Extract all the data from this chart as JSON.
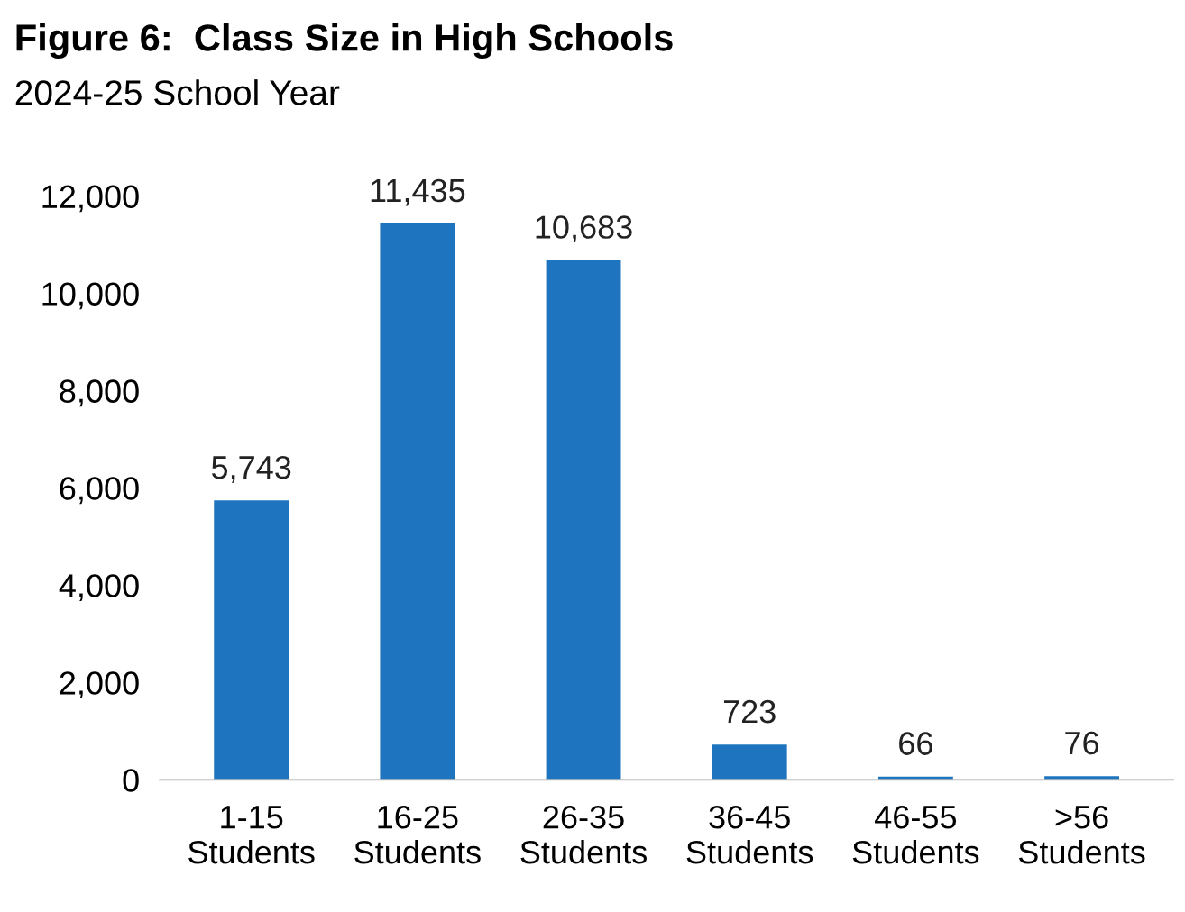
{
  "chart_data": {
    "type": "bar",
    "title": "Figure 6:  Class Size in High Schools",
    "subtitle": "2024-25 School Year",
    "categories": [
      "1-15\nStudents",
      "16-25\nStudents",
      "26-35\nStudents",
      "36-45\nStudents",
      "46-55\nStudents",
      ">56\nStudents"
    ],
    "values": [
      5743,
      11435,
      10683,
      723,
      66,
      76
    ],
    "color": "#1f74bf",
    "ylim": [
      0,
      12000
    ],
    "yticks": [
      {
        "value": 0,
        "label": "0"
      },
      {
        "value": 2000,
        "label": "2,000"
      },
      {
        "value": 4000,
        "label": "4,000"
      },
      {
        "value": 6000,
        "label": "6,000"
      },
      {
        "value": 8000,
        "label": "8,000"
      },
      {
        "value": 10000,
        "label": "10,000"
      },
      {
        "value": 12000,
        "label": "12,000"
      }
    ],
    "value_labels": [
      "5,743",
      "11,435",
      "10,683",
      "723",
      "66",
      "76"
    ],
    "grid": false
  }
}
